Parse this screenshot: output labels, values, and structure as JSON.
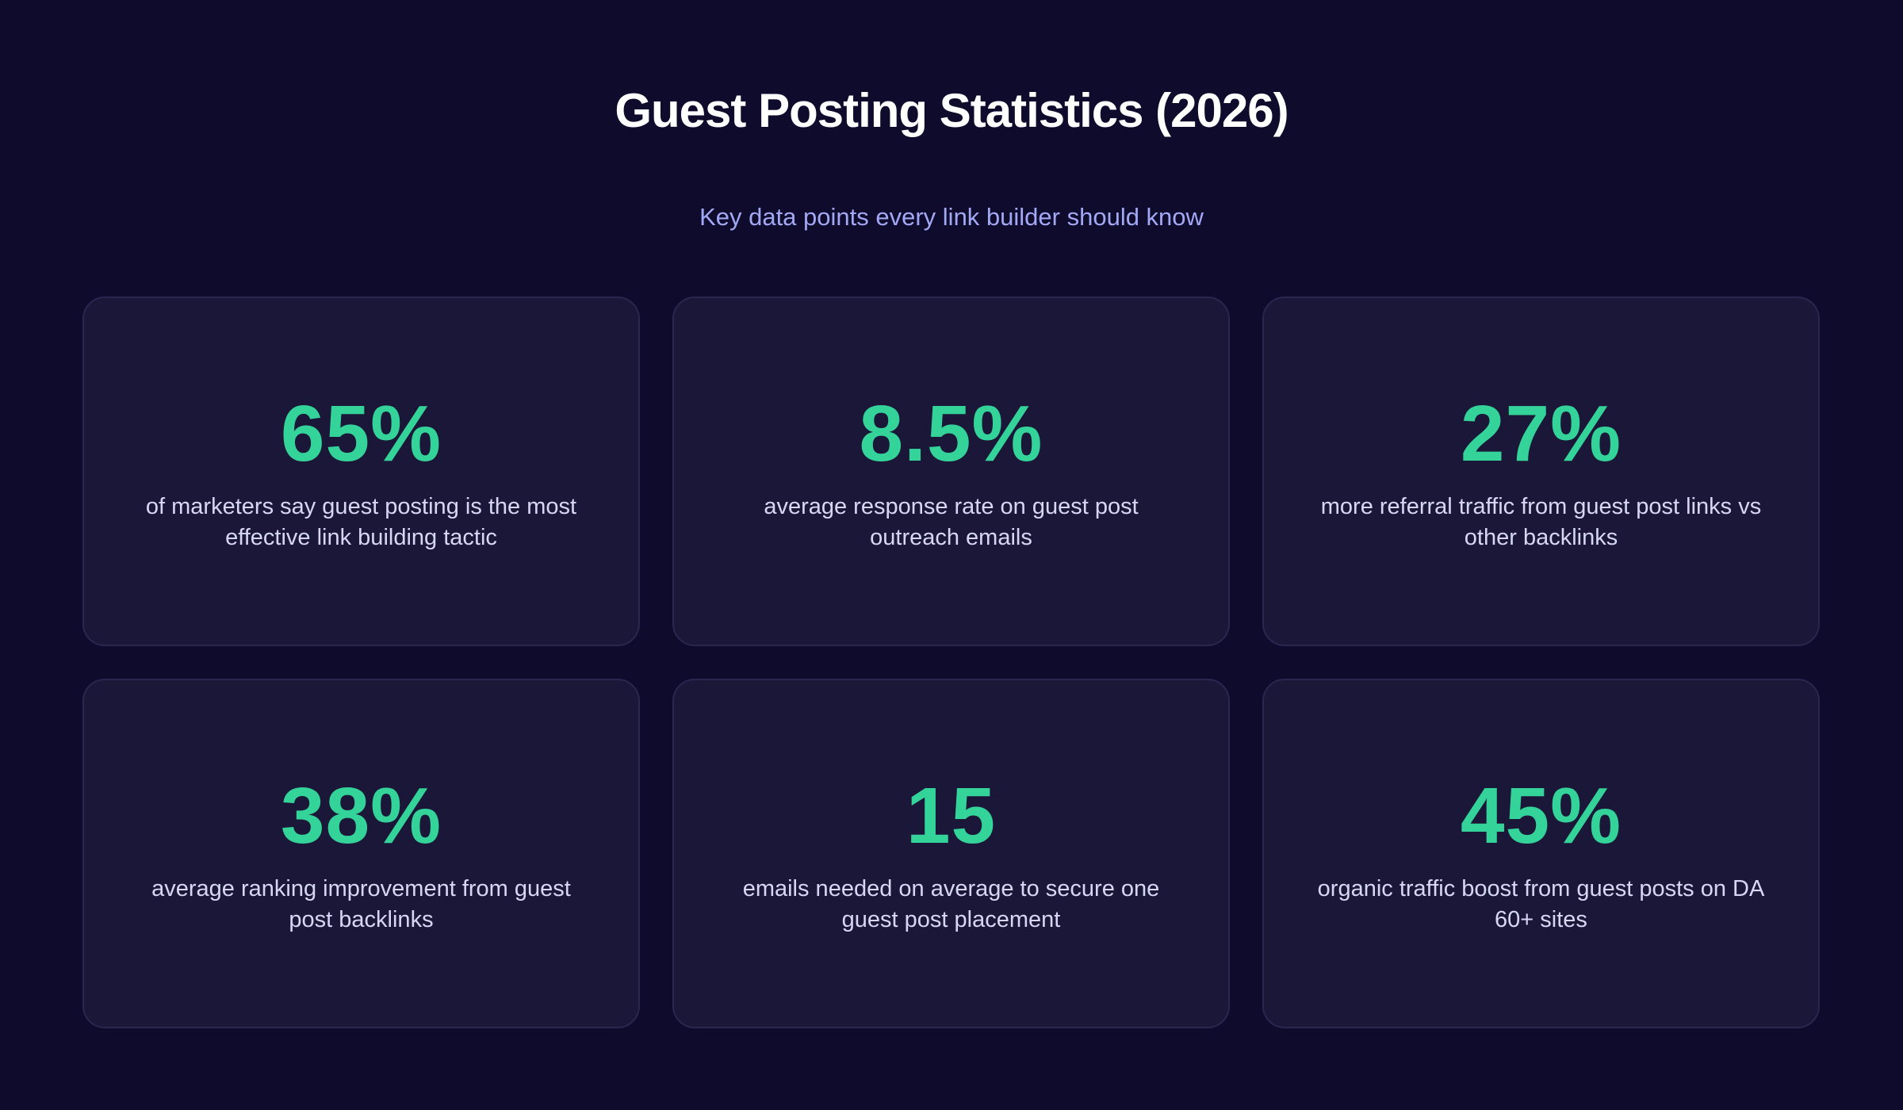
{
  "header": {
    "title": "Guest Posting Statistics (2026)",
    "subtitle": "Key data points every link builder should know"
  },
  "stats": [
    {
      "value": "65%",
      "description": "of marketers say guest posting is the most effective link building tactic"
    },
    {
      "value": "8.5%",
      "description": "average response rate on guest post outreach emails"
    },
    {
      "value": "27%",
      "description": "more referral traffic from guest post links vs other backlinks"
    },
    {
      "value": "38%",
      "description": "average ranking improvement from guest post backlinks"
    },
    {
      "value": "15",
      "description": "emails needed on average to secure one guest post placement"
    },
    {
      "value": "45%",
      "description": "organic traffic boost from guest posts on DA 60+ sites"
    }
  ],
  "colors": {
    "background": "#0e0b2c",
    "card_background": "#1b1738",
    "card_border": "#2a2650",
    "accent": "#34d399",
    "title": "#ffffff",
    "subtitle": "#a3a8f5",
    "body_text": "#d6d8f3"
  }
}
